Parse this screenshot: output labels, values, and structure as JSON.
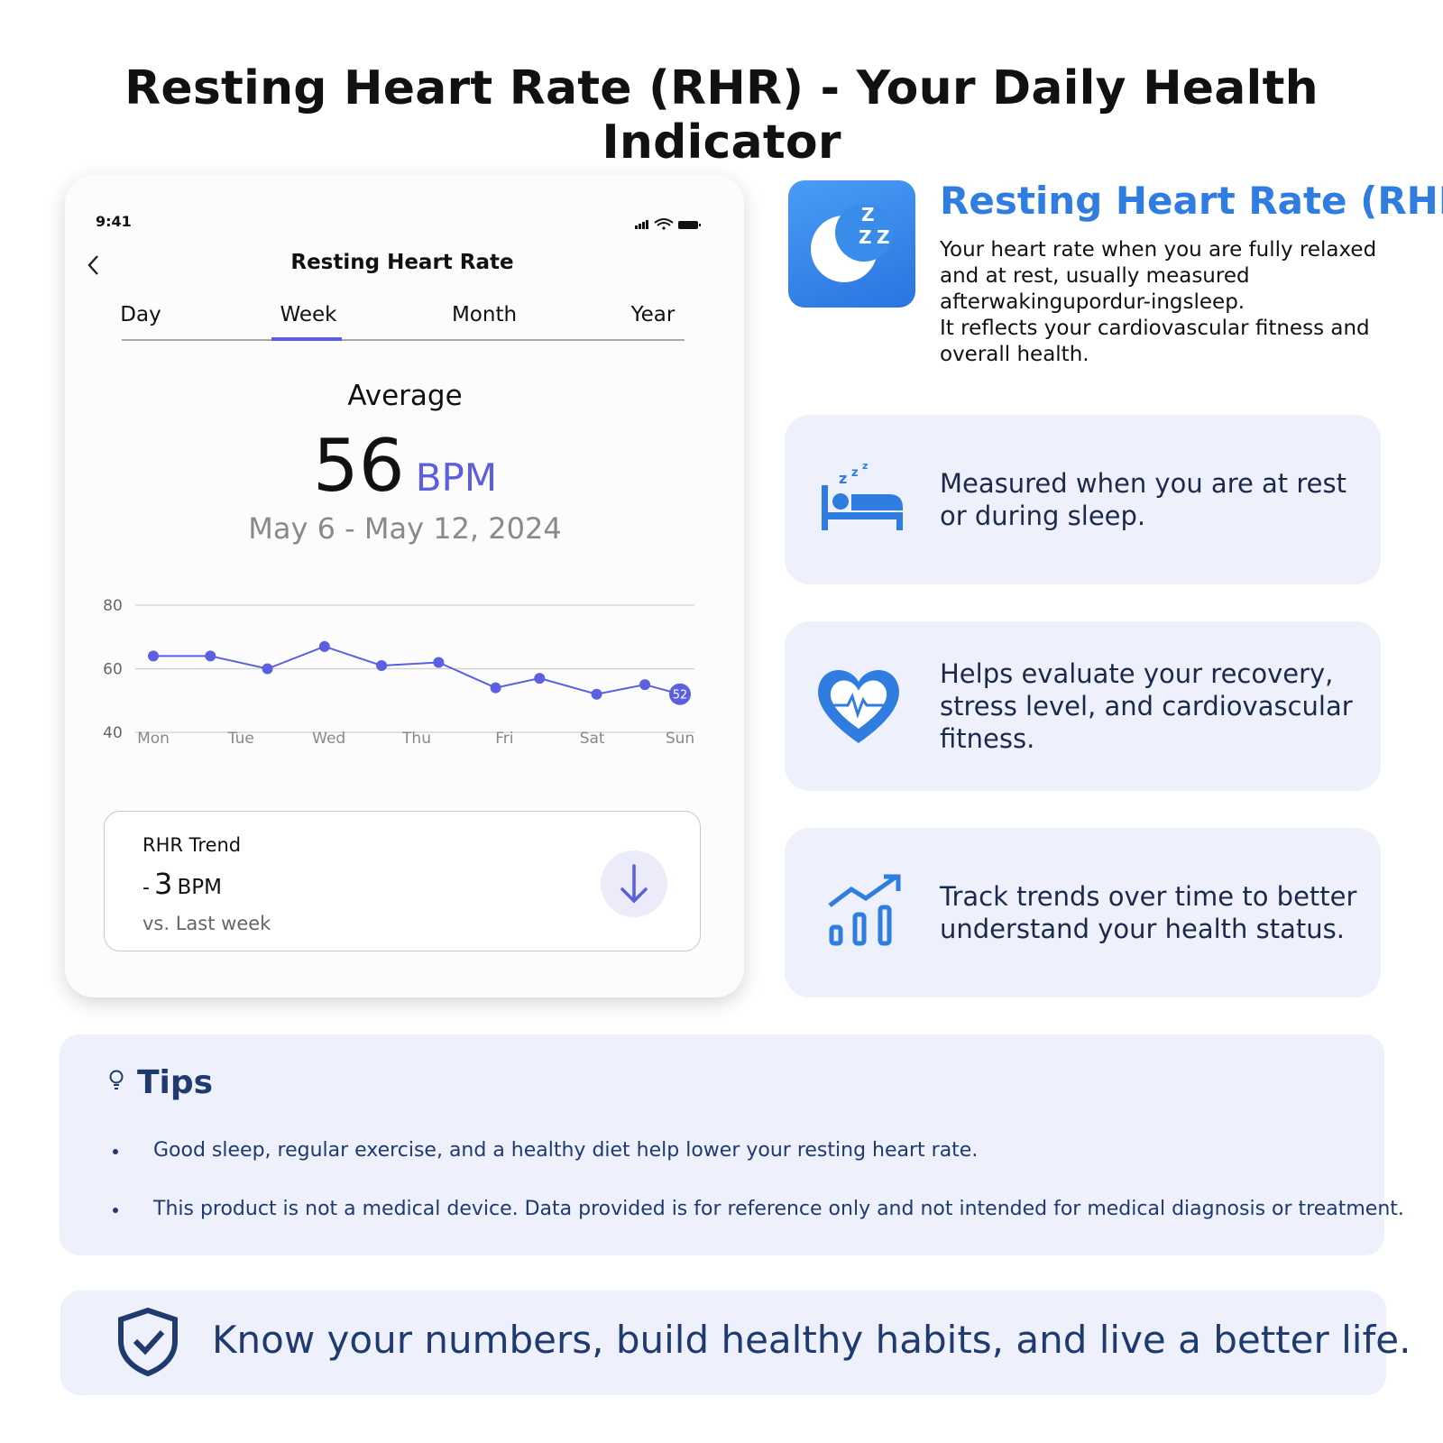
{
  "header": {
    "title": "Resting Heart Rate (RHR) - Your Daily Health Indicator"
  },
  "phone": {
    "time": "9:41",
    "title": "Resting Heart Rate",
    "tabs": [
      "Day",
      "Week",
      "Month",
      "Year"
    ],
    "average": {
      "label": "Average",
      "value": 56,
      "unit": "BPM",
      "date_range": "May 6 - May 12, 2024"
    },
    "trend": {
      "title": "RHR Trend",
      "sign": "-",
      "value": 3,
      "unit": "BPM",
      "comparison": "vs. Last week"
    }
  },
  "chart_data": {
    "type": "line",
    "x": [
      0,
      0.65,
      1.3,
      1.95,
      2.6,
      3.25,
      3.9,
      4.4,
      5.05,
      5.6,
      6
    ],
    "values": [
      64,
      64,
      60,
      67,
      61,
      62,
      54,
      57,
      52,
      55,
      52
    ],
    "color": "#5b5fe0",
    "xlim": [
      0,
      6
    ],
    "xticks": [
      {
        "value": 0,
        "label": "Mon"
      },
      {
        "value": 1,
        "label": "Tue"
      },
      {
        "value": 2,
        "label": "Wed"
      },
      {
        "value": 3,
        "label": "Thu"
      },
      {
        "value": 4,
        "label": "Fri"
      },
      {
        "value": 5,
        "label": "Sat"
      },
      {
        "value": 6,
        "label": "Sun"
      }
    ],
    "ylim": [
      40,
      80
    ],
    "yticks": [
      40,
      60,
      80
    ],
    "grid": true
  },
  "info": {
    "title": "Resting Heart Rate (RHR)",
    "paragraphs": [
      "Your heart rate when you are fully relaxed and at rest, usually measured afterwakingupordur-ingsleep.",
      "It reflects your cardiovascular fitness and overall health."
    ]
  },
  "features": [
    "Measured when you are at rest or during sleep.",
    "Helps evaluate your recovery, stress level, and cardiovascular fitness.",
    "Track trends over time to better understand your health status."
  ],
  "tips": {
    "title": "Tips",
    "items": [
      "Good sleep, regular exercise, and a healthy diet help lower your resting heart rate.",
      "This product is not a medical device. Data provided is for reference only and not intended for medical diagnosis or treatment."
    ]
  },
  "footer": {
    "text": "Know your numbers, build healthy habits, and live a better life."
  }
}
